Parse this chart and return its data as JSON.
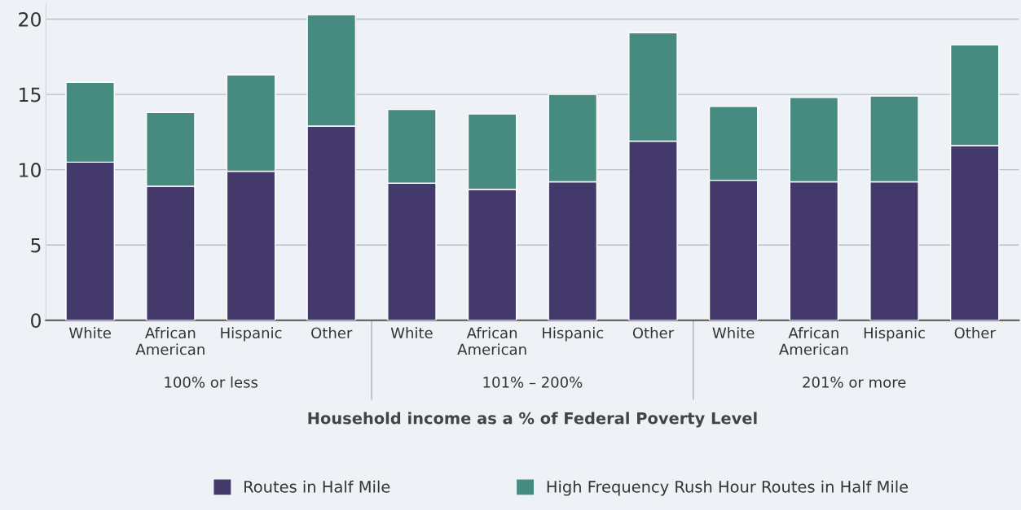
{
  "chart_data": {
    "type": "bar",
    "stacked": true,
    "xlabel": "Household income as a % of Federal Poverty Level",
    "categories": [
      "White",
      "African\nAmerican",
      "Hispanic",
      "Other",
      "White",
      "African\nAmerican",
      "Hispanic",
      "Other",
      "White",
      "African\nAmerican",
      "Hispanic",
      "Other"
    ],
    "series": [
      {
        "name": "Routes in Half Mile",
        "color": "#433a6b",
        "values": [
          10.5,
          8.9,
          9.9,
          12.9,
          9.1,
          8.7,
          9.2,
          11.9,
          9.3,
          9.2,
          9.2,
          11.6
        ]
      },
      {
        "name": "High Frequency Rush Hour Routes in Half Mile",
        "color": "#478a80",
        "values": [
          5.3,
          4.9,
          6.4,
          7.4,
          4.9,
          5.0,
          5.8,
          7.2,
          4.9,
          5.6,
          5.7,
          6.7
        ]
      }
    ],
    "annotations": [
      "100% or less",
      "101% – 200%",
      "201% or more"
    ],
    "ylim": [
      0,
      21
    ],
    "yticks": [
      0,
      5,
      10,
      15,
      20
    ],
    "grid": "y",
    "legend": "bottom"
  }
}
